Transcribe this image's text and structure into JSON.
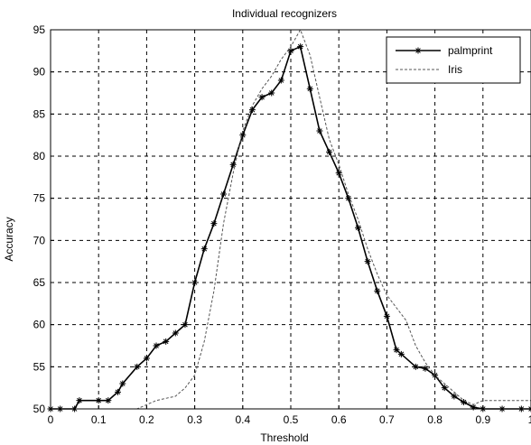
{
  "chart_data": {
    "type": "line",
    "title": "Individual recognizers",
    "xlabel": "Threshold",
    "ylabel": "Accuracy",
    "xlim": [
      0,
      1
    ],
    "ylim": [
      50,
      95
    ],
    "xticks": [
      "0",
      "0.1",
      "0.2",
      "0.3",
      "0.4",
      "0.5",
      "0.6",
      "0.7",
      "0.8",
      "0.9",
      "1"
    ],
    "yticks": [
      "50",
      "55",
      "60",
      "65",
      "70",
      "75",
      "80",
      "85",
      "90",
      "95"
    ],
    "grid": true,
    "legend": "top-right",
    "series": [
      {
        "name": "palmprint",
        "style": "solid-star-marker",
        "color": "#000000",
        "x": [
          0,
          0.02,
          0.05,
          0.06,
          0.1,
          0.12,
          0.14,
          0.15,
          0.18,
          0.2,
          0.22,
          0.24,
          0.26,
          0.28,
          0.3,
          0.32,
          0.34,
          0.36,
          0.38,
          0.4,
          0.42,
          0.44,
          0.46,
          0.48,
          0.5,
          0.52,
          0.54,
          0.56,
          0.58,
          0.6,
          0.62,
          0.64,
          0.66,
          0.68,
          0.7,
          0.72,
          0.73,
          0.76,
          0.78,
          0.8,
          0.82,
          0.84,
          0.86,
          0.88,
          0.9,
          0.94,
          0.98,
          1.0
        ],
        "values": [
          50,
          50,
          50,
          51,
          51,
          51,
          52,
          53,
          55,
          56,
          57.5,
          58,
          59,
          60,
          65,
          69,
          72,
          75.5,
          79,
          82.5,
          85.5,
          87,
          87.5,
          89,
          92.5,
          93,
          88,
          83,
          80.5,
          78,
          75,
          71.5,
          67.5,
          64,
          61,
          57,
          56.5,
          55,
          54.8,
          54,
          52.5,
          51.5,
          50.8,
          50.2,
          50,
          50,
          50,
          50
        ]
      },
      {
        "name": "Iris",
        "style": "dashed",
        "color": "#555555",
        "x": [
          0,
          0.1,
          0.18,
          0.2,
          0.22,
          0.26,
          0.28,
          0.3,
          0.32,
          0.34,
          0.36,
          0.38,
          0.4,
          0.42,
          0.44,
          0.46,
          0.48,
          0.5,
          0.52,
          0.54,
          0.56,
          0.58,
          0.6,
          0.62,
          0.64,
          0.66,
          0.68,
          0.7,
          0.72,
          0.74,
          0.76,
          0.78,
          0.8,
          0.82,
          0.84,
          0.86,
          0.88,
          0.9,
          0.95,
          1.0
        ],
        "values": [
          50,
          50,
          50,
          50.5,
          51,
          51.5,
          52.5,
          54,
          58,
          64,
          72,
          78,
          83,
          86,
          88,
          89.5,
          91.5,
          93,
          95,
          92,
          87,
          82,
          79,
          75.5,
          72.5,
          69,
          66,
          63.5,
          62,
          60.5,
          57.5,
          55.5,
          54,
          53,
          52,
          51,
          50.5,
          51,
          51,
          51
        ]
      }
    ]
  }
}
